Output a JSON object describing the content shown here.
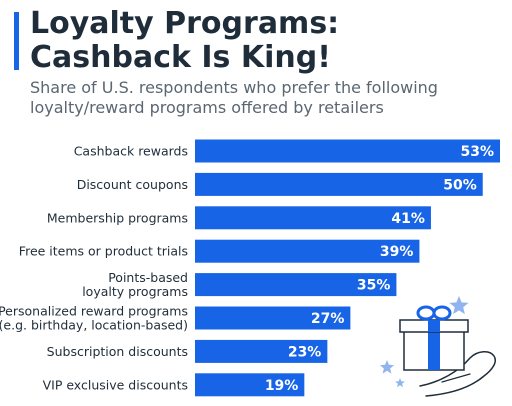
{
  "header": {
    "title_line1": "Loyalty Programs:",
    "title_line2": "Cashback Is King!",
    "subtitle": "Share of U.S. respondents who prefer the following loyalty/reward programs offered by retailers"
  },
  "colors": {
    "bar": "#1864e6",
    "accent": "#1864e6",
    "title": "#1f2d3a",
    "subtitle": "#5a6672",
    "illustration_light": "#8fb4ef"
  },
  "icons": [
    "gift-box-icon",
    "hand-icon",
    "star-icon"
  ],
  "chart_data": {
    "type": "bar",
    "orientation": "horizontal",
    "categories": [
      "Cashback rewards",
      "Discount coupons",
      "Membership programs",
      "Free items or product trials",
      "Points-based\nloyalty programs",
      "Personalized reward programs\n(e.g. birthday, location-based)",
      "Subscription discounts",
      "VIP exclusive discounts"
    ],
    "values": [
      53,
      50,
      41,
      39,
      35,
      27,
      23,
      19
    ],
    "value_labels": [
      "53%",
      "50%",
      "41%",
      "39%",
      "35%",
      "27%",
      "23%",
      "19%"
    ],
    "unit": "%",
    "xlim": [
      0,
      53
    ],
    "grid": false,
    "legend": "none"
  }
}
